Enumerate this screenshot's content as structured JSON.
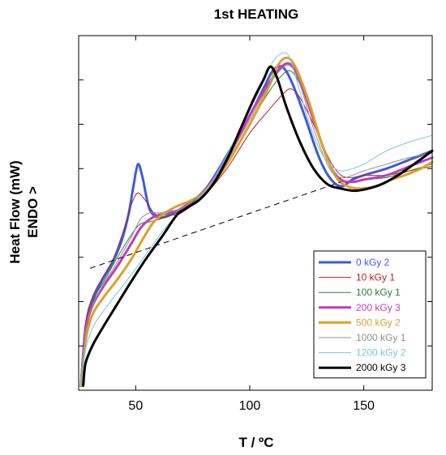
{
  "chart_data": {
    "type": "line",
    "title": "1st HEATING",
    "xlabel": "T / ºC",
    "ylabel": "Heat Flow (mW)",
    "ylabel2": "ENDO >",
    "xlim": [
      25,
      180
    ],
    "ylim": [
      0,
      8
    ],
    "x_ticks": [
      50,
      100,
      150
    ],
    "y_ticks": [
      1,
      2,
      3,
      4,
      5,
      6,
      7
    ],
    "y_tick_labels": "none",
    "legend_position": "bottom-right",
    "baseline": {
      "style": "dashed",
      "color": "#000000",
      "points": [
        [
          30,
          2.75
        ],
        [
          140,
          4.7
        ]
      ]
    },
    "series": [
      {
        "name": "0 kGy 2",
        "color": "#3b5bdb",
        "width": 3,
        "points": [
          [
            26,
            0.1
          ],
          [
            28,
            1.4
          ],
          [
            31,
            2.0
          ],
          [
            35,
            2.45
          ],
          [
            40,
            2.9
          ],
          [
            44,
            3.4
          ],
          [
            47,
            4.0
          ],
          [
            49,
            4.6
          ],
          [
            51,
            5.1
          ],
          [
            53,
            4.8
          ],
          [
            56,
            4.1
          ],
          [
            60,
            3.9
          ],
          [
            65,
            3.95
          ],
          [
            70,
            4.1
          ],
          [
            80,
            4.5
          ],
          [
            90,
            5.3
          ],
          [
            100,
            6.2
          ],
          [
            106,
            6.8
          ],
          [
            110,
            7.2
          ],
          [
            114,
            7.3
          ],
          [
            118,
            7.0
          ],
          [
            124,
            6.2
          ],
          [
            130,
            5.3
          ],
          [
            135,
            4.8
          ],
          [
            140,
            4.6
          ],
          [
            145,
            4.75
          ],
          [
            150,
            4.85
          ],
          [
            160,
            5.0
          ],
          [
            170,
            5.2
          ],
          [
            180,
            5.4
          ]
        ]
      },
      {
        "name": "10 kGy 1",
        "color": "#b22222",
        "width": 1,
        "points": [
          [
            26,
            0.1
          ],
          [
            28,
            1.5
          ],
          [
            31,
            2.1
          ],
          [
            35,
            2.5
          ],
          [
            40,
            2.95
          ],
          [
            44,
            3.5
          ],
          [
            47,
            4.0
          ],
          [
            49,
            4.3
          ],
          [
            51,
            4.45
          ],
          [
            54,
            4.3
          ],
          [
            58,
            4.0
          ],
          [
            62,
            3.9
          ],
          [
            66,
            3.95
          ],
          [
            70,
            4.0
          ],
          [
            80,
            4.4
          ],
          [
            90,
            5.0
          ],
          [
            100,
            5.8
          ],
          [
            108,
            6.3
          ],
          [
            114,
            6.65
          ],
          [
            118,
            6.8
          ],
          [
            122,
            6.6
          ],
          [
            128,
            6.0
          ],
          [
            135,
            5.2
          ],
          [
            140,
            4.85
          ],
          [
            145,
            4.8
          ],
          [
            150,
            4.85
          ],
          [
            160,
            4.85
          ],
          [
            170,
            4.95
          ],
          [
            180,
            5.05
          ]
        ]
      },
      {
        "name": "100 kGy 1",
        "color": "#2e7d32",
        "width": 1,
        "points": [
          [
            26,
            0.1
          ],
          [
            28,
            1.4
          ],
          [
            31,
            2.0
          ],
          [
            36,
            2.45
          ],
          [
            42,
            3.0
          ],
          [
            48,
            3.5
          ],
          [
            52,
            3.75
          ],
          [
            56,
            3.8
          ],
          [
            60,
            3.85
          ],
          [
            65,
            3.95
          ],
          [
            70,
            4.05
          ],
          [
            80,
            4.45
          ],
          [
            90,
            5.1
          ],
          [
            100,
            6.0
          ],
          [
            108,
            6.7
          ],
          [
            114,
            7.1
          ],
          [
            118,
            7.2
          ],
          [
            122,
            6.9
          ],
          [
            128,
            6.1
          ],
          [
            135,
            5.1
          ],
          [
            140,
            4.75
          ],
          [
            145,
            4.7
          ],
          [
            150,
            4.75
          ],
          [
            160,
            4.8
          ],
          [
            170,
            4.95
          ],
          [
            180,
            5.1
          ]
        ]
      },
      {
        "name": "200 kGy 3",
        "color": "#c03cc0",
        "width": 3,
        "points": [
          [
            26,
            0.1
          ],
          [
            28,
            1.3
          ],
          [
            31,
            1.9
          ],
          [
            36,
            2.35
          ],
          [
            42,
            2.8
          ],
          [
            48,
            3.3
          ],
          [
            52,
            3.65
          ],
          [
            56,
            3.85
          ],
          [
            60,
            3.95
          ],
          [
            65,
            4.0
          ],
          [
            70,
            4.1
          ],
          [
            80,
            4.5
          ],
          [
            90,
            5.2
          ],
          [
            100,
            6.2
          ],
          [
            108,
            6.9
          ],
          [
            114,
            7.3
          ],
          [
            118,
            7.35
          ],
          [
            122,
            7.0
          ],
          [
            128,
            6.1
          ],
          [
            135,
            5.1
          ],
          [
            140,
            4.75
          ],
          [
            145,
            4.7
          ],
          [
            150,
            4.75
          ],
          [
            160,
            4.85
          ],
          [
            170,
            5.05
          ],
          [
            180,
            5.25
          ]
        ]
      },
      {
        "name": "500 kGy 2",
        "color": "#e0a020",
        "width": 3,
        "points": [
          [
            26,
            0.1
          ],
          [
            28,
            1.1
          ],
          [
            31,
            1.7
          ],
          [
            36,
            2.1
          ],
          [
            42,
            2.5
          ],
          [
            48,
            2.95
          ],
          [
            53,
            3.4
          ],
          [
            58,
            3.8
          ],
          [
            63,
            4.0
          ],
          [
            68,
            4.15
          ],
          [
            75,
            4.3
          ],
          [
            82,
            4.55
          ],
          [
            90,
            5.1
          ],
          [
            100,
            6.0
          ],
          [
            108,
            6.8
          ],
          [
            112,
            7.3
          ],
          [
            116,
            7.5
          ],
          [
            120,
            7.3
          ],
          [
            126,
            6.5
          ],
          [
            132,
            5.5
          ],
          [
            138,
            4.8
          ],
          [
            143,
            4.6
          ],
          [
            148,
            4.55
          ],
          [
            155,
            4.6
          ],
          [
            162,
            4.75
          ],
          [
            168,
            4.85
          ],
          [
            175,
            5.0
          ],
          [
            180,
            5.15
          ]
        ]
      },
      {
        "name": "1000 kGy 1",
        "color": "#909090",
        "width": 1,
        "points": [
          [
            26,
            0.1
          ],
          [
            28,
            1.3
          ],
          [
            31,
            1.9
          ],
          [
            36,
            2.4
          ],
          [
            42,
            2.9
          ],
          [
            48,
            3.45
          ],
          [
            52,
            3.85
          ],
          [
            56,
            4.0
          ],
          [
            60,
            4.0
          ],
          [
            65,
            4.05
          ],
          [
            70,
            4.1
          ],
          [
            80,
            4.5
          ],
          [
            90,
            5.2
          ],
          [
            100,
            6.1
          ],
          [
            108,
            6.85
          ],
          [
            114,
            7.25
          ],
          [
            118,
            7.3
          ],
          [
            122,
            6.9
          ],
          [
            128,
            5.9
          ],
          [
            135,
            5.0
          ],
          [
            140,
            4.8
          ],
          [
            145,
            4.85
          ],
          [
            150,
            4.95
          ],
          [
            160,
            5.1
          ],
          [
            170,
            5.25
          ],
          [
            180,
            5.35
          ]
        ]
      },
      {
        "name": "1200 kGy 2",
        "color": "#70c8e0",
        "width": 1,
        "points": [
          [
            26,
            0.1
          ],
          [
            28,
            0.9
          ],
          [
            31,
            1.4
          ],
          [
            36,
            1.8
          ],
          [
            42,
            2.2
          ],
          [
            48,
            2.6
          ],
          [
            55,
            3.1
          ],
          [
            62,
            3.6
          ],
          [
            68,
            3.95
          ],
          [
            75,
            4.2
          ],
          [
            82,
            4.6
          ],
          [
            90,
            5.3
          ],
          [
            98,
            6.1
          ],
          [
            105,
            6.85
          ],
          [
            110,
            7.4
          ],
          [
            114,
            7.6
          ],
          [
            117,
            7.55
          ],
          [
            120,
            7.1
          ],
          [
            125,
            6.2
          ],
          [
            130,
            5.5
          ],
          [
            135,
            5.1
          ],
          [
            140,
            4.95
          ],
          [
            145,
            5.0
          ],
          [
            150,
            5.1
          ],
          [
            160,
            5.4
          ],
          [
            170,
            5.6
          ],
          [
            180,
            5.75
          ]
        ]
      },
      {
        "name": "2000 kGy 3",
        "color": "#000000",
        "width": 3,
        "points": [
          [
            27,
            0.1
          ],
          [
            28,
            0.6
          ],
          [
            31,
            1.0
          ],
          [
            36,
            1.45
          ],
          [
            42,
            1.95
          ],
          [
            48,
            2.45
          ],
          [
            55,
            3.0
          ],
          [
            62,
            3.5
          ],
          [
            68,
            3.95
          ],
          [
            72,
            4.1
          ],
          [
            78,
            4.3
          ],
          [
            84,
            4.65
          ],
          [
            90,
            5.2
          ],
          [
            96,
            5.9
          ],
          [
            102,
            6.6
          ],
          [
            106,
            7.0
          ],
          [
            109,
            7.3
          ],
          [
            112,
            7.05
          ],
          [
            116,
            6.4
          ],
          [
            122,
            5.6
          ],
          [
            128,
            5.0
          ],
          [
            134,
            4.65
          ],
          [
            140,
            4.55
          ],
          [
            146,
            4.5
          ],
          [
            152,
            4.55
          ],
          [
            158,
            4.65
          ],
          [
            165,
            4.85
          ],
          [
            172,
            5.1
          ],
          [
            180,
            5.4
          ]
        ]
      }
    ]
  }
}
